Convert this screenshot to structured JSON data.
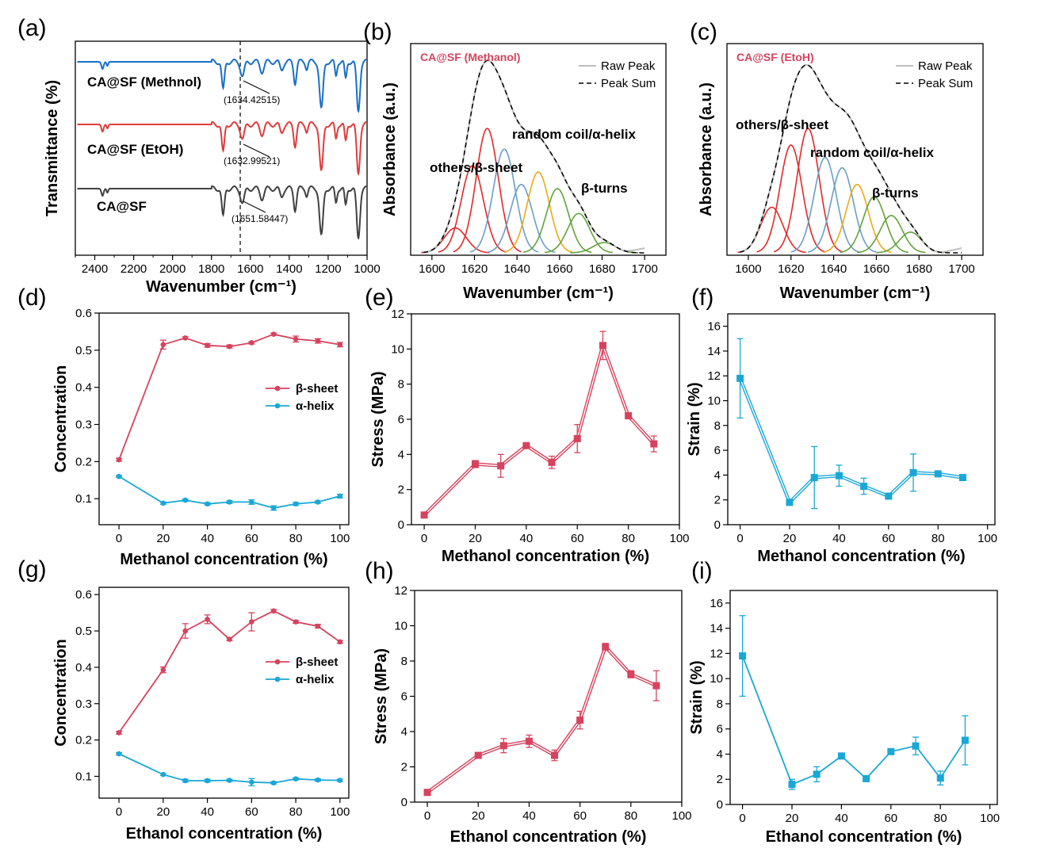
{
  "colors": {
    "blue": "#1a6fc9",
    "red": "#e03c3c",
    "black": "#404040",
    "pink": "#d6435e",
    "cyan": "#1aa7d6"
  },
  "chart_data": [
    {
      "id": "a",
      "type": "line",
      "label": "(a)",
      "xlabel": "Wavenumber (cm⁻¹)",
      "ylabel": "Transmittance (%)",
      "xlim": [
        2500,
        1000
      ],
      "xticks": [
        2400,
        2200,
        2000,
        1800,
        1600,
        1400,
        1200,
        1000
      ],
      "series": [
        {
          "name": "CA@SF (Methnol)",
          "annotation": "(1634.42515)"
        },
        {
          "name": "CA@SF (EtOH)",
          "annotation": "(1632.99521)"
        },
        {
          "name": "CA@SF",
          "annotation": "(1651.58447)"
        }
      ]
    },
    {
      "id": "b",
      "type": "line",
      "label": "(b)",
      "title": "CA@SF (Methanol)",
      "xlabel": "Wavenumber (cm⁻¹)",
      "ylabel": "Absorbance (a.u.)",
      "xlim": [
        1590,
        1710
      ],
      "xticks": [
        1600,
        1620,
        1640,
        1660,
        1680,
        1700
      ],
      "legend": [
        "Raw Peak",
        "Peak Sum"
      ],
      "annotations": [
        "others/β-sheet",
        "random coil/α-helix",
        "β-turns"
      ],
      "peaks": [
        {
          "c": 1611,
          "h": 0.12,
          "color": "red"
        },
        {
          "c": 1619,
          "h": 0.42,
          "color": "red"
        },
        {
          "c": 1626,
          "h": 0.6,
          "color": "red"
        },
        {
          "c": 1634,
          "h": 0.5,
          "color": "steelblue"
        },
        {
          "c": 1642,
          "h": 0.33,
          "color": "steelblue"
        },
        {
          "c": 1650,
          "h": 0.39,
          "color": "orange"
        },
        {
          "c": 1659,
          "h": 0.31,
          "color": "green"
        },
        {
          "c": 1669,
          "h": 0.19,
          "color": "green"
        },
        {
          "c": 1681,
          "h": 0.05,
          "color": "green"
        }
      ]
    },
    {
      "id": "c",
      "type": "line",
      "label": "(c)",
      "title": "CA@SF (EtoH)",
      "xlabel": "Wavenumber (cm⁻¹)",
      "ylabel": "Absorbance (a.u.)",
      "xlim": [
        1590,
        1710
      ],
      "xticks": [
        1600,
        1620,
        1640,
        1660,
        1680,
        1700
      ],
      "legend": [
        "Raw Peak",
        "Peak Sum"
      ],
      "annotations": [
        "others/β-sheet",
        "random coil/α-helix",
        "β-turns"
      ],
      "peaks": [
        {
          "c": 1611,
          "h": 0.22,
          "color": "red"
        },
        {
          "c": 1620,
          "h": 0.52,
          "color": "red"
        },
        {
          "c": 1628,
          "h": 0.6,
          "color": "red"
        },
        {
          "c": 1636,
          "h": 0.46,
          "color": "steelblue"
        },
        {
          "c": 1644,
          "h": 0.41,
          "color": "steelblue"
        },
        {
          "c": 1651,
          "h": 0.33,
          "color": "orange"
        },
        {
          "c": 1659,
          "h": 0.27,
          "color": "green"
        },
        {
          "c": 1667,
          "h": 0.18,
          "color": "green"
        },
        {
          "c": 1676,
          "h": 0.1,
          "color": "green"
        }
      ]
    },
    {
      "id": "d",
      "type": "line",
      "label": "(d)",
      "xlabel": "Methanol concentration (%)",
      "ylabel": "Concentration",
      "xlim": [
        -9,
        104
      ],
      "ylim": [
        0.03,
        0.6
      ],
      "xticks": [
        0,
        20,
        40,
        60,
        80,
        100
      ],
      "yticks": [
        0.1,
        0.2,
        0.3,
        0.4,
        0.5,
        0.6
      ],
      "x": [
        0,
        20,
        30,
        40,
        50,
        60,
        70,
        80,
        90,
        100
      ],
      "series": [
        {
          "name": "β-sheet",
          "values": [
            0.205,
            0.515,
            0.533,
            0.513,
            0.51,
            0.52,
            0.543,
            0.53,
            0.525,
            0.515
          ],
          "err": [
            0.004,
            0.012,
            0.003,
            0.005,
            0.004,
            0.003,
            0.003,
            0.008,
            0.006,
            0.006
          ]
        },
        {
          "name": "α-helix",
          "values": [
            0.16,
            0.088,
            0.096,
            0.086,
            0.091,
            0.091,
            0.075,
            0.086,
            0.091,
            0.107
          ],
          "err": [
            0.002,
            0.003,
            0.003,
            0.003,
            0.004,
            0.006,
            0.006,
            0.004,
            0.003,
            0.005
          ]
        }
      ]
    },
    {
      "id": "e",
      "type": "line",
      "label": "(e)",
      "xlabel": "Methanol concentration (%)",
      "ylabel": "Stress (MPa)",
      "xlim": [
        -5,
        100
      ],
      "ylim": [
        0,
        12
      ],
      "xticks": [
        0,
        20,
        40,
        60,
        80,
        100
      ],
      "yticks": [
        0,
        2,
        4,
        6,
        8,
        10,
        12
      ],
      "x": [
        0,
        20,
        30,
        40,
        50,
        60,
        70,
        80,
        90
      ],
      "series": [
        {
          "name": "Stress",
          "values": [
            0.55,
            3.45,
            3.35,
            4.5,
            3.55,
            4.9,
            10.2,
            6.2,
            4.6
          ],
          "err": [
            0.05,
            0.2,
            0.65,
            0.15,
            0.35,
            0.8,
            0.8,
            0.1,
            0.45
          ]
        }
      ]
    },
    {
      "id": "f",
      "type": "line",
      "label": "(f)",
      "xlabel": "Methanol concentration (%)",
      "ylabel": "Strain (%)",
      "xlim": [
        -5,
        103
      ],
      "ylim": [
        0,
        17
      ],
      "xticks": [
        0,
        20,
        40,
        60,
        80,
        100
      ],
      "yticks": [
        0,
        2,
        4,
        6,
        8,
        10,
        12,
        14,
        16
      ],
      "x": [
        0,
        20,
        30,
        40,
        50,
        60,
        70,
        80,
        90
      ],
      "series": [
        {
          "name": "Strain",
          "values": [
            11.8,
            1.8,
            3.8,
            3.95,
            3.1,
            2.3,
            4.2,
            4.1,
            3.8
          ],
          "err": [
            3.2,
            0.1,
            2.5,
            0.85,
            0.65,
            0.2,
            1.5,
            0.2,
            0.15
          ]
        }
      ]
    },
    {
      "id": "g",
      "type": "line",
      "label": "(g)",
      "xlabel": "Ethanol concentration (%)",
      "ylabel": "Concentration",
      "xlim": [
        -9,
        104
      ],
      "ylim": [
        0.04,
        0.62
      ],
      "xticks": [
        0,
        20,
        40,
        60,
        80,
        100
      ],
      "yticks": [
        0.1,
        0.2,
        0.3,
        0.4,
        0.5,
        0.6
      ],
      "x": [
        0,
        20,
        30,
        40,
        50,
        60,
        70,
        80,
        90,
        100
      ],
      "series": [
        {
          "name": "β-sheet",
          "values": [
            0.22,
            0.393,
            0.5,
            0.532,
            0.477,
            0.525,
            0.555,
            0.525,
            0.513,
            0.47
          ],
          "err": [
            0.004,
            0.008,
            0.02,
            0.012,
            0.004,
            0.025,
            0.004,
            0.004,
            0.005,
            0.004
          ]
        },
        {
          "name": "α-helix",
          "values": [
            0.162,
            0.105,
            0.088,
            0.088,
            0.089,
            0.084,
            0.082,
            0.093,
            0.09,
            0.089
          ],
          "err": [
            0.003,
            0.003,
            0.004,
            0.004,
            0.003,
            0.01,
            0.003,
            0.003,
            0.003,
            0.003
          ]
        }
      ]
    },
    {
      "id": "h",
      "type": "line",
      "label": "(h)",
      "xlabel": "Ethanol concentration (%)",
      "ylabel": "Stress (MPa)",
      "xlim": [
        -5,
        100
      ],
      "ylim": [
        0,
        12
      ],
      "xticks": [
        0,
        20,
        40,
        60,
        80,
        100
      ],
      "yticks": [
        0,
        2,
        4,
        6,
        8,
        10,
        12
      ],
      "x": [
        0,
        20,
        30,
        40,
        50,
        60,
        70,
        80,
        90
      ],
      "series": [
        {
          "name": "Stress",
          "values": [
            0.55,
            2.65,
            3.2,
            3.45,
            2.65,
            4.65,
            8.8,
            7.25,
            6.6
          ],
          "err": [
            0.05,
            0.1,
            0.4,
            0.35,
            0.3,
            0.5,
            0.2,
            0.2,
            0.85
          ]
        }
      ]
    },
    {
      "id": "i",
      "type": "line",
      "label": "(i)",
      "xlabel": "Ethanol concentration (%)",
      "ylabel": "Strain (%)",
      "xlim": [
        -5,
        103
      ],
      "ylim": [
        0,
        17
      ],
      "xticks": [
        0,
        20,
        40,
        60,
        80,
        100
      ],
      "yticks": [
        0,
        2,
        4,
        6,
        8,
        10,
        12,
        14,
        16
      ],
      "x": [
        0,
        20,
        30,
        40,
        50,
        60,
        70,
        80,
        90
      ],
      "series": [
        {
          "name": "Strain",
          "values": [
            11.8,
            1.6,
            2.4,
            3.85,
            2.05,
            4.2,
            4.65,
            2.1,
            5.1
          ],
          "err": [
            3.2,
            0.4,
            0.6,
            0.15,
            0.2,
            0.15,
            0.7,
            0.55,
            1.95
          ]
        }
      ]
    }
  ]
}
